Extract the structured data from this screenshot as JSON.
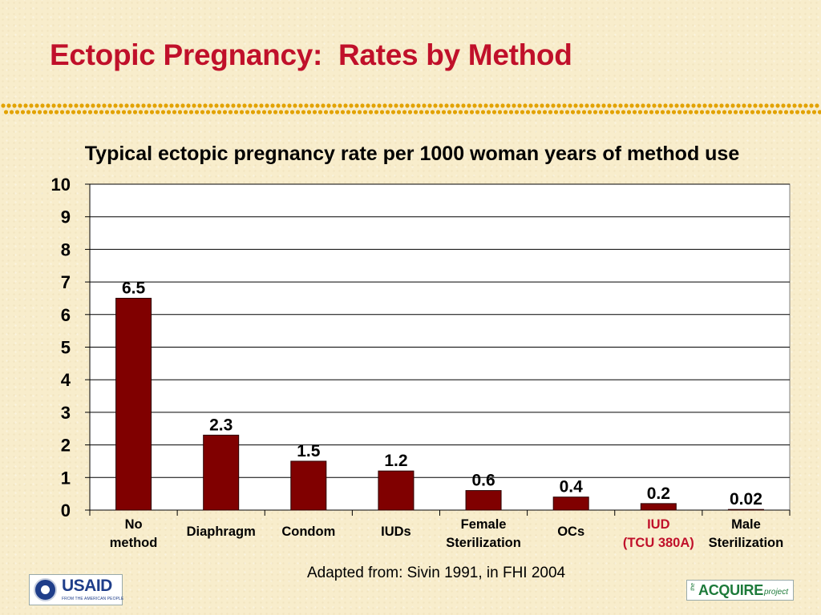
{
  "slide": {
    "title": "Ectopic Pregnancy:  Rates by Method",
    "source": "Adapted from: Sivin 1991, in FHI 2004",
    "logos": {
      "usaid_word": "USAID",
      "usaid_tagline": "FROM THE AMERICAN PEOPLE",
      "acquire_prefix": "the",
      "acquire_word": "ACQUIRE",
      "acquire_suffix": "project"
    }
  },
  "chart_data": {
    "type": "bar",
    "title": "Typical ectopic pregnancy rate per 1000 woman years of method use",
    "categories": [
      [
        "No",
        "method"
      ],
      [
        "Diaphragm"
      ],
      [
        "Condom"
      ],
      [
        "IUDs"
      ],
      [
        "Female",
        "Sterilization"
      ],
      [
        "OCs"
      ],
      [
        "IUD",
        "(TCU 380A)"
      ],
      [
        "Male",
        "Sterilization"
      ]
    ],
    "category_highlight": [
      false,
      false,
      false,
      false,
      false,
      false,
      true,
      false
    ],
    "values": [
      6.5,
      2.3,
      1.5,
      1.2,
      0.6,
      0.4,
      0.2,
      0.02
    ],
    "value_labels": [
      "6.5",
      "2.3",
      "1.5",
      "1.2",
      "0.6",
      "0.4",
      "0.2",
      "0.02"
    ],
    "ylim": [
      0,
      10
    ],
    "yticks": [
      0,
      1,
      2,
      3,
      4,
      5,
      6,
      7,
      8,
      9,
      10
    ],
    "grid": true,
    "colors": {
      "bar": "#800000",
      "bar_edge": "#2b0000",
      "highlight_label": "#c0102a",
      "title": "#c0102a",
      "plot_bg": "#ffffff",
      "grid": "#000000"
    }
  }
}
